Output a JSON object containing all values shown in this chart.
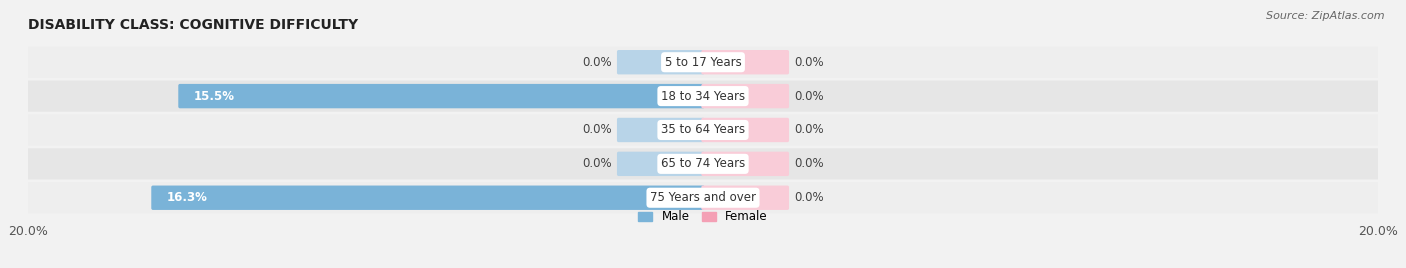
{
  "title": "DISABILITY CLASS: COGNITIVE DIFFICULTY",
  "source": "Source: ZipAtlas.com",
  "categories": [
    "5 to 17 Years",
    "18 to 34 Years",
    "35 to 64 Years",
    "65 to 74 Years",
    "75 Years and over"
  ],
  "male_values": [
    0.0,
    15.5,
    0.0,
    0.0,
    16.3
  ],
  "female_values": [
    0.0,
    0.0,
    0.0,
    0.0,
    0.0
  ],
  "male_color": "#7ab3d8",
  "male_stub_color": "#b8d4e8",
  "female_color": "#f4a0b5",
  "female_stub_color": "#f9ccd8",
  "male_label": "Male",
  "female_label": "Female",
  "xlim": 20.0,
  "stub_size": 2.5,
  "row_colors": [
    "#eeeeee",
    "#e6e6e6"
  ],
  "title_fontsize": 10,
  "label_fontsize": 8.5,
  "tick_fontsize": 9,
  "source_fontsize": 8,
  "value_label_color": "#444444",
  "value_label_color_in": "#ffffff"
}
